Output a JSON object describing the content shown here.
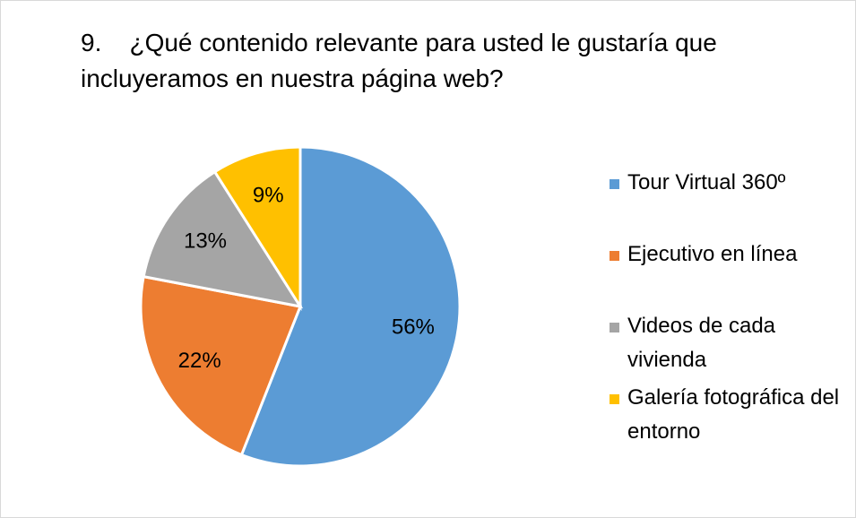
{
  "chart_data": {
    "type": "pie",
    "title": "9.    ¿Qué contenido relevante para usted le gustaría que incluyeramos en nuestra página web?",
    "categories": [
      "Tour Virtual 360º",
      "Ejecutivo en línea",
      "Videos de cada vivienda",
      "Galería fotográfica del entorno"
    ],
    "values": [
      56,
      22,
      13,
      9
    ],
    "value_labels": [
      "56%",
      "22%",
      "13%",
      "9%"
    ],
    "colors": [
      "#5b9bd5",
      "#ed7d31",
      "#a5a5a5",
      "#ffc000"
    ],
    "legend": "right"
  }
}
